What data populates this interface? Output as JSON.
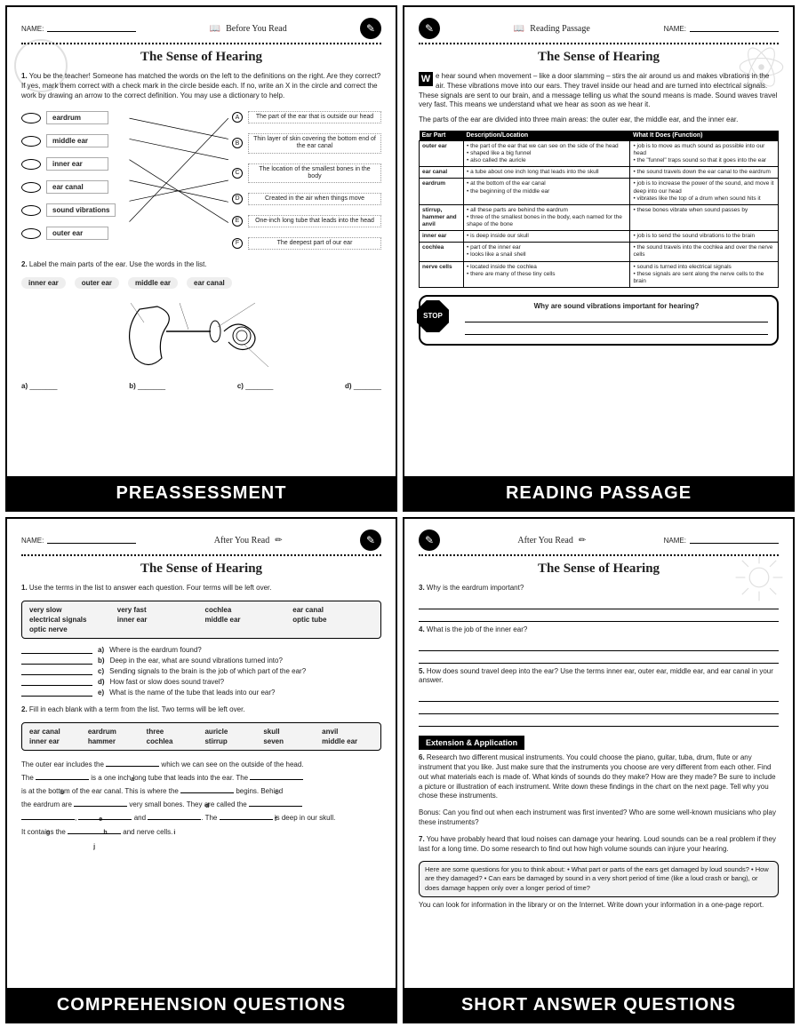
{
  "common": {
    "name_label": "NAME:",
    "title": "The Sense of Hearing"
  },
  "page1": {
    "section_tag": "Before You Read",
    "footer": "PREASSESSMENT",
    "q1_instr": "You be the teacher! Someone has matched the words on the left to the definitions on the right. Are they correct? If yes, mark them correct with a check mark in the circle beside each. If no, write an X in the circle and correct the work by drawing an arrow to the correct definition. You may use a dictionary to help.",
    "terms": [
      "eardrum",
      "middle ear",
      "inner ear",
      "ear canal",
      "sound vibrations",
      "outer ear"
    ],
    "letters": [
      "A",
      "B",
      "C",
      "D",
      "E",
      "F"
    ],
    "defs": [
      "The part of the ear that is outside our head",
      "Thin layer of skin covering the bottom end of the ear canal",
      "The location of the smallest bones in the body",
      "Created in the air when things move",
      "One-inch long tube that leads into the head",
      "The deepest part of our ear"
    ],
    "q2_instr": "Label the main parts of the ear. Use the words in the list.",
    "pills": [
      "inner ear",
      "outer ear",
      "middle ear",
      "ear canal"
    ],
    "labels": [
      "a)",
      "b)",
      "c)",
      "d)"
    ]
  },
  "page2": {
    "section_tag": "Reading Passage",
    "footer": "READING PASSAGE",
    "intro": "e hear sound when movement – like a door slamming – stirs the air around us and makes vibrations in the air. These vibrations move into our ears. They travel inside our head and are turned into electrical signals. These signals are sent to our brain, and a message telling us what the sound means is made. Sound waves travel very fast. This means we understand what we hear as soon as we hear it.",
    "dropcap": "W",
    "parts_intro": "The parts of the ear are divided into three main areas: the outer ear, the middle ear, and the inner ear.",
    "table_headers": [
      "Ear Part",
      "Description/Location",
      "What It Does (Function)"
    ],
    "table": [
      [
        "outer ear",
        "• the part of the ear that we can see on the side of the head\n• shaped like a big funnel\n• also called the auricle",
        "• job is to move as much sound as possible into our head\n• the \"funnel\" traps sound so that it goes into the ear"
      ],
      [
        "ear canal",
        "• a tube about one inch long that leads into the skull",
        "• the sound travels down the ear canal to the eardrum"
      ],
      [
        "eardrum",
        "• at the bottom of the ear canal\n• the beginning of the middle ear",
        "• job is to increase the power of the sound, and move it deep into our head\n• vibrates like the top of a drum when sound hits it"
      ],
      [
        "stirrup, hammer and anvil",
        "• all these parts are behind the eardrum\n• three of the smallest bones in the body, each named for the shape of the bone",
        "• these bones vibrate when sound passes by"
      ],
      [
        "inner ear",
        "• is deep inside our skull",
        "• job is to send the sound vibrations to the brain"
      ],
      [
        "cochlea",
        "• part of the inner ear\n• looks like a snail shell",
        "• the sound travels into the cochlea and over the nerve cells"
      ],
      [
        "nerve cells",
        "• located inside the cochlea\n• there are many of these tiny cells",
        "• sound is turned into electrical signals\n• these signals are sent along the nerve cells to the brain"
      ]
    ],
    "stop_q": "Why are sound vibrations important for hearing?",
    "stop_label": "STOP"
  },
  "page3": {
    "section_tag": "After You Read",
    "footer": "COMPREHENSION QUESTIONS",
    "q1_instr": "Use the terms in the list to answer each question.  Four  terms will be left over.",
    "bank1": [
      "very slow",
      "very fast",
      "cochlea",
      "ear canal",
      "electrical signals",
      "inner ear",
      "middle ear",
      "optic tube",
      "optic nerve"
    ],
    "q1_items": [
      "Where is the eardrum found?",
      "Deep in the ear, what are sound vibrations turned into?",
      "Sending signals to the brain is the job of which part of the ear?",
      "How fast or slow does sound travel?",
      "What is the name of the tube that leads into our ear?"
    ],
    "q1_letters": [
      "a)",
      "b)",
      "c)",
      "d)",
      "e)"
    ],
    "q2_instr": "Fill in each blank with a term from the list.  Two  terms will be left over.",
    "bank2": [
      "ear canal",
      "eardrum",
      "three",
      "auricle",
      "skull",
      "anvil",
      "inner ear",
      "hammer",
      "cochlea",
      "stirrup",
      "seven",
      "middle ear"
    ],
    "fill_text": {
      "s1a": "The outer ear includes the",
      "s1b": "which we can see on the outside of the head.",
      "s2a": "The",
      "s2b": "is a one inch long tube that leads into the ear. The",
      "s3a": "is at the bottom of the ear canal. This is where the",
      "s3b": "begins. Behind",
      "s4a": "the eardrum are",
      "s4b": "very small bones. They are called the",
      "s5a": ",",
      "s5b": "and",
      "s5c": ". The",
      "s5d": "is deep in our skull.",
      "s6a": "It contains the",
      "s6b": "and nerve cells."
    },
    "fill_subs": [
      "a",
      "b",
      "c",
      "d",
      "e",
      "f",
      "g",
      "h",
      "i",
      "j"
    ]
  },
  "page4": {
    "section_tag": "After You Read",
    "footer": "SHORT ANSWER QUESTIONS",
    "q3": "Why is the eardrum important?",
    "q4": "What is the job of the inner ear?",
    "q5": "How does sound travel deep into the ear? Use the terms inner ear, outer ear, middle ear, and ear canal in your answer.",
    "ext_label": "Extension & Application",
    "q6": "Research two different musical instruments. You could choose the piano, guitar, tuba, drum, flute or any instrument that you like. Just make sure that the instruments you choose are very different from each other. Find out what materials each is made of. What kinds of sounds do they make? How are they made? Be sure to include a picture or illustration of each instrument. Write down these findings in the chart on the next page. Tell why you chose these instruments.",
    "q6_bonus": "Bonus: Can you find out when each instrument was first invented? Who are some well-known musicians who play these instruments?",
    "q7": "You have probably heard that loud noises can damage your hearing. Loud sounds can be a real problem if they last for a long time. Do some research to find out how high volume sounds can injure your hearing.",
    "hint": "Here are some questions for you to think about: • What part or parts of the ears get damaged by loud sounds? • How are they damaged? • Can ears be damaged by sound in a very short period of time (like a loud crash or bang), or does damage happen only over a longer period of time?",
    "q7_tail": "You can look for information in the library or on the Internet. Write down your information in a one-page report."
  }
}
